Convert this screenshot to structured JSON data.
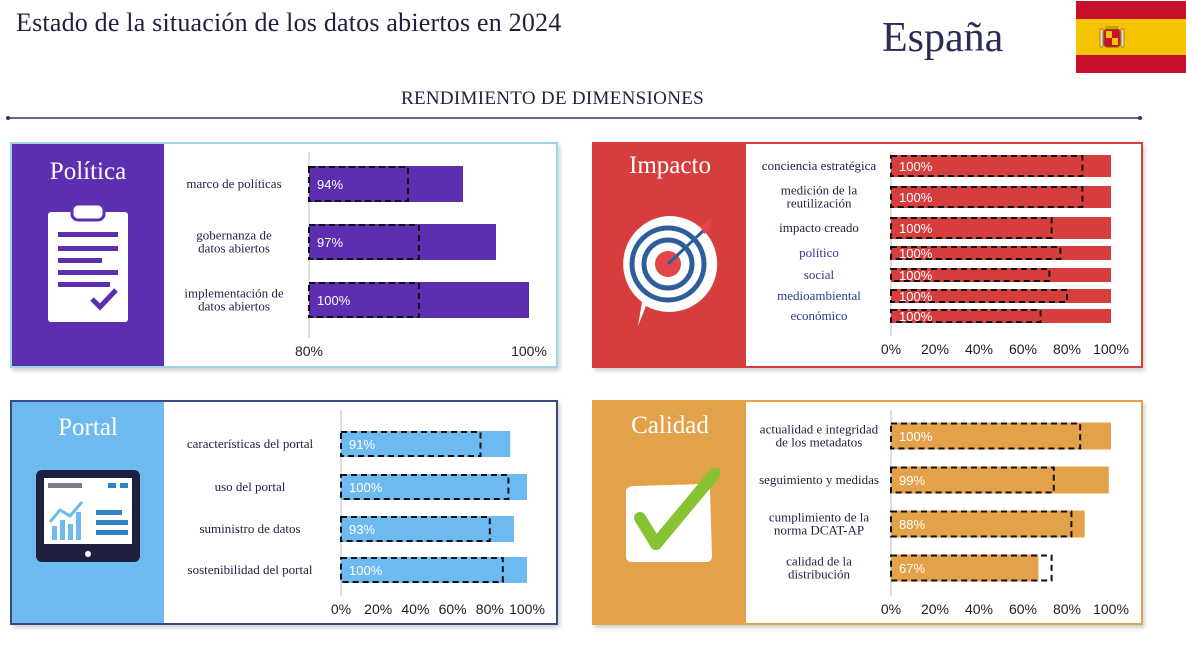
{
  "header": {
    "title": "Estado de la situación de los datos abiertos en 2024",
    "country": "España",
    "section": "RENDIMIENTO DE DIMENSIONES"
  },
  "colors": {
    "politica": "#5b2fb0",
    "impacto": "#d63e3e",
    "portal": "#6cbaf0",
    "calidad": "#e3a24a"
  },
  "chart_data": [
    {
      "id": "politica",
      "title": "Política",
      "type": "bar",
      "orientation": "horizontal",
      "icon": "clipboard-check-icon",
      "xlim": [
        80,
        100
      ],
      "x_ticks": [
        "80%",
        "100%"
      ],
      "categories": [
        [
          "marco de políticas"
        ],
        [
          "gobernanza de",
          "datos abiertos"
        ],
        [
          "implementación de",
          "datos abiertos"
        ]
      ],
      "values": [
        94,
        97,
        100
      ],
      "value_labels": [
        "94%",
        "97%",
        "100%"
      ],
      "benchmark": [
        89,
        90,
        90
      ]
    },
    {
      "id": "impacto",
      "title": "Impacto",
      "type": "bar",
      "orientation": "horizontal",
      "icon": "target-icon",
      "xlim": [
        0,
        100
      ],
      "x_ticks": [
        "0%",
        "20%",
        "40%",
        "60%",
        "80%",
        "100%"
      ],
      "categories": [
        [
          "conciencia estratégica"
        ],
        [
          "medición de la",
          "reutilización"
        ],
        [
          "impacto creado"
        ],
        [
          "político"
        ],
        [
          "social"
        ],
        [
          "medioambiental"
        ],
        [
          "económico"
        ]
      ],
      "category_style": [
        "main",
        "main",
        "main",
        "sub",
        "sub",
        "sub",
        "sub"
      ],
      "values": [
        100,
        100,
        100,
        100,
        100,
        100,
        100
      ],
      "value_labels": [
        "100%",
        "100%",
        "100%",
        "100%",
        "100%",
        "100%",
        "100%"
      ],
      "benchmark": [
        87,
        87,
        73,
        77,
        72,
        80,
        68
      ]
    },
    {
      "id": "portal",
      "title": "Portal",
      "type": "bar",
      "orientation": "horizontal",
      "icon": "dashboard-tablet-icon",
      "xlim": [
        0,
        100
      ],
      "x_ticks": [
        "0%",
        "20%",
        "40%",
        "60%",
        "80%",
        "100%"
      ],
      "categories": [
        [
          "características del portal"
        ],
        [
          "uso del portal"
        ],
        [
          "suministro de datos"
        ],
        [
          "sostenibilidad del portal"
        ]
      ],
      "values": [
        91,
        100,
        93,
        100
      ],
      "value_labels": [
        "91%",
        "100%",
        "93%",
        "100%"
      ],
      "benchmark": [
        75,
        90,
        80,
        87
      ]
    },
    {
      "id": "calidad",
      "title": "Calidad",
      "type": "bar",
      "orientation": "horizontal",
      "icon": "checkmark-icon",
      "xlim": [
        0,
        100
      ],
      "x_ticks": [
        "0%",
        "20%",
        "40%",
        "60%",
        "80%",
        "100%"
      ],
      "categories": [
        [
          "actualidad e integridad",
          "de los metadatos"
        ],
        [
          "seguimiento y medidas"
        ],
        [
          "cumplimiento de la",
          "norma DCAT-AP"
        ],
        [
          "calidad de la",
          "distribución"
        ]
      ],
      "values": [
        100,
        99,
        88,
        67
      ],
      "value_labels": [
        "100%",
        "99%",
        "88%",
        "67%"
      ],
      "benchmark": [
        86,
        74,
        82,
        73
      ]
    }
  ]
}
